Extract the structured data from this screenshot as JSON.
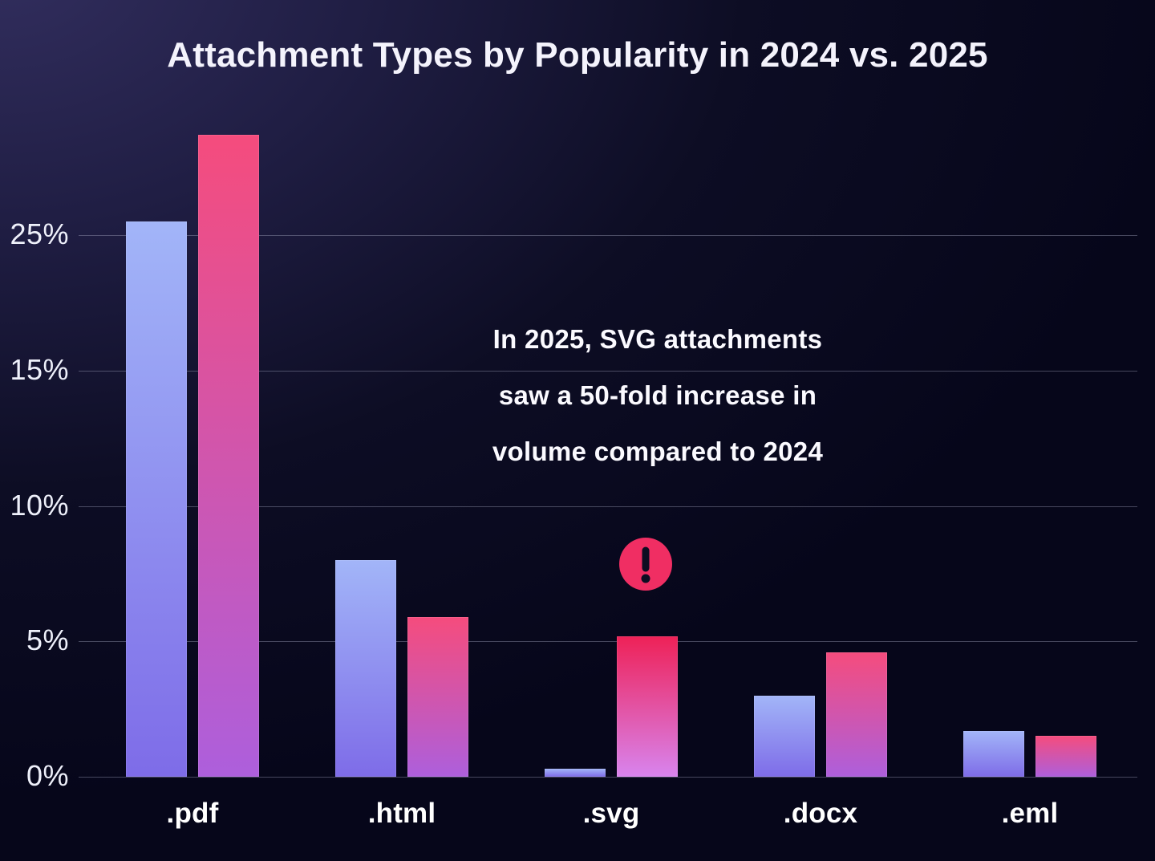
{
  "title": "Attachment Types by Popularity in 2024 vs. 2025",
  "annotation": {
    "lines": [
      "In 2025, SVG attachments",
      "saw a 50-fold increase in",
      "volume compared to 2024"
    ]
  },
  "chart_data": {
    "type": "bar",
    "title": "Attachment Types by Popularity in 2024 vs. 2025",
    "categories": [
      ".pdf",
      ".html",
      ".svg",
      ".docx",
      ".eml"
    ],
    "series": [
      {
        "name": "2024",
        "values": [
          26,
          8,
          0.3,
          3,
          1.7
        ]
      },
      {
        "name": "2025",
        "values": [
          32.4,
          5.9,
          5.2,
          4.6,
          1.5
        ]
      }
    ],
    "y_ticks": [
      {
        "value": 0,
        "label": "0%"
      },
      {
        "value": 5,
        "label": "5%"
      },
      {
        "value": 10,
        "label": "10%"
      },
      {
        "value": 15,
        "label": "15%"
      },
      {
        "value": 25,
        "label": "25%"
      }
    ],
    "xlabel": "",
    "ylabel": "",
    "grid": true,
    "legend": "none",
    "axis_note": "tick labels equally spaced as drawn, including the 15%-to-25% jump",
    "highlight": {
      "category": ".svg",
      "series": "2025",
      "marker": "exclamation-icon"
    }
  },
  "colors": {
    "background": "#06061a",
    "background_glow": "#322e5e",
    "series_2024_top": "#a2b5f8",
    "series_2024_bottom": "#7e6ce8",
    "series_2025_top": "#f54c7d",
    "series_2025_bottom": "#ad5fdc",
    "highlight_top": "#ee2157",
    "highlight_bottom": "#d884ee",
    "alert_badge": "#f02e63",
    "alert_glyph": "#0d0d22",
    "gridline": "rgba(168,171,196,0.40)",
    "text": "#f4f3fc"
  }
}
